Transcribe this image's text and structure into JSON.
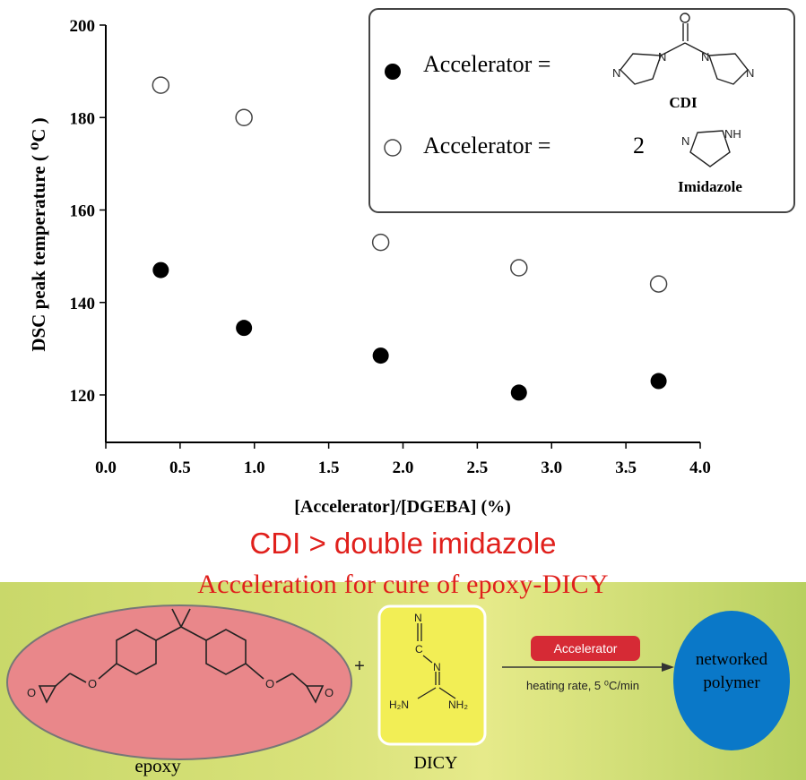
{
  "colors": {
    "filled_marker": "#000000",
    "open_marker": "#ffffff",
    "headline": "#e0201c",
    "epoxy_fill": "#e9878a",
    "dicy_fill": "#f2ee55",
    "polymer_fill": "#0a78c8",
    "accelerator_badge": "#d62a35"
  },
  "chart_data": {
    "type": "scatter",
    "xlabel": "[Accelerator]/[DGEBA] (%)",
    "ylabel": "DSC peak temperature ( ⁰C )",
    "xlim": [
      0.0,
      4.0
    ],
    "ylim": [
      110,
      200
    ],
    "xticks": [
      "0.0",
      "0.5",
      "1.0",
      "1.5",
      "2.0",
      "2.5",
      "3.0",
      "3.5",
      "4.0"
    ],
    "yticks": [
      "120",
      "140",
      "160",
      "180",
      "200"
    ],
    "grid": false,
    "legend_position": "top-right",
    "series": [
      {
        "name": "Accelerator = CDI",
        "marker": "filled",
        "x": [
          0.37,
          0.93,
          1.85,
          2.78,
          3.72
        ],
        "y": [
          147,
          134.5,
          128.5,
          120.5,
          123
        ]
      },
      {
        "name": "Accelerator = 2 Imidazole",
        "marker": "open",
        "x": [
          0.37,
          0.93,
          1.85,
          2.78,
          3.72
        ],
        "y": [
          187,
          180,
          153,
          147.5,
          144
        ]
      }
    ]
  },
  "legend": {
    "label_1": "Accelerator =",
    "label_2": "Accelerator =",
    "multiplier": "2",
    "cdi_name": "CDI",
    "imidazole_name": "Imidazole"
  },
  "headline": {
    "line_1": "CDI > double imidazole",
    "line_2": "Acceleration for cure of epoxy-DICY"
  },
  "scheme": {
    "plus": "+",
    "epoxy_label": "epoxy",
    "dicy_label": "DICY",
    "accelerator_badge": "Accelerator",
    "heating_rate": "heating rate, 5 ⁰C/min",
    "product_line_1": "networked",
    "product_line_2": "polymer"
  }
}
